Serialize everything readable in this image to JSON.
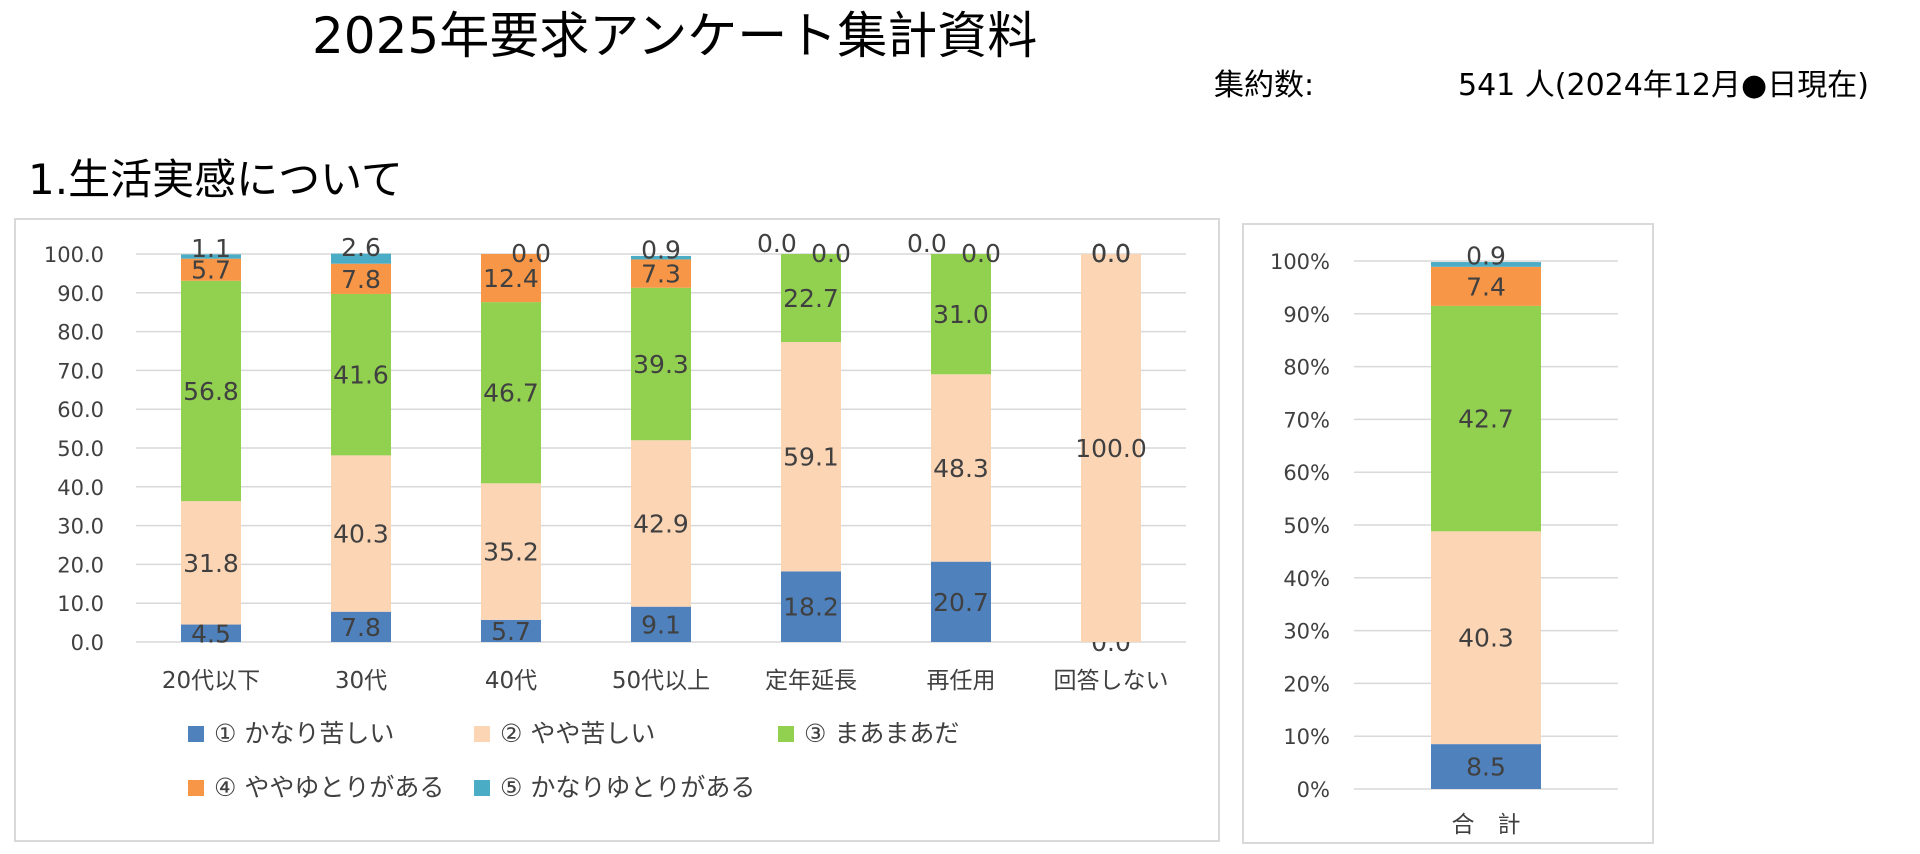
{
  "header": {
    "title": "2025年要求アンケート集計資料",
    "count_label": "集約数:",
    "count_value": "541 人(2024年12月●日現在)"
  },
  "section": {
    "title": "1.生活実感について"
  },
  "colors": {
    "s1": "#4f81bd",
    "s2": "#fcd5b5",
    "s3": "#92d050",
    "s4": "#f79646",
    "s5": "#4bacc6",
    "grid": "#d9d9d9",
    "text": "#404040"
  },
  "chart_data": [
    {
      "type": "bar",
      "stacked": true,
      "title": "",
      "xlabel": "",
      "ylabel": "",
      "ylim": [
        0,
        100
      ],
      "yticks": [
        "0.0",
        "10.0",
        "20.0",
        "30.0",
        "40.0",
        "50.0",
        "60.0",
        "70.0",
        "80.0",
        "90.0",
        "100.0"
      ],
      "grid": true,
      "legend_position": "bottom",
      "categories": [
        "20代以下",
        "30代",
        "40代",
        "50代以上",
        "定年延長",
        "再任用",
        "回答しない"
      ],
      "series": [
        {
          "name": "① かなり苦しい",
          "values": [
            4.5,
            7.8,
            5.7,
            9.1,
            18.2,
            20.7,
            0.0
          ],
          "labels": [
            "4.5",
            "7.8",
            "5.7",
            "9.1",
            "18.2",
            "20.7",
            "0.0"
          ]
        },
        {
          "name": "② やや苦しい",
          "values": [
            31.8,
            40.3,
            35.2,
            42.9,
            59.1,
            48.3,
            100.0
          ],
          "labels": [
            "31.8",
            "40.3",
            "35.2",
            "42.9",
            "59.1",
            "48.3",
            "100.0"
          ]
        },
        {
          "name": "③ まあまあだ",
          "values": [
            56.8,
            41.6,
            46.7,
            39.3,
            22.7,
            31.0,
            0.0
          ],
          "labels": [
            "56.8",
            "41.6",
            "46.7",
            "39.3",
            "22.7",
            "31.0",
            "0.0"
          ]
        },
        {
          "name": "④ ややゆとりがある",
          "values": [
            5.7,
            7.8,
            12.4,
            7.3,
            0.0,
            0.0,
            0.0
          ],
          "labels": [
            "5.7",
            "7.8",
            "12.4",
            "7.3",
            "0.0",
            "0.0",
            "0.0"
          ]
        },
        {
          "name": "⑤ かなりゆとりがある",
          "values": [
            1.1,
            2.6,
            0.0,
            0.9,
            0.0,
            0.0,
            0.0
          ],
          "labels": [
            "1.1",
            "2.6",
            "0.0",
            "0.9",
            "0.0",
            "0.0",
            "0.0"
          ]
        }
      ]
    },
    {
      "type": "bar",
      "stacked": true,
      "title": "",
      "xlabel": "",
      "ylabel": "",
      "ylim": [
        0,
        100
      ],
      "yticks": [
        "0%",
        "10%",
        "20%",
        "30%",
        "40%",
        "50%",
        "60%",
        "70%",
        "80%",
        "90%",
        "100%"
      ],
      "grid": true,
      "categories": [
        "合　計"
      ],
      "series": [
        {
          "name": "① かなり苦しい",
          "values": [
            8.5
          ],
          "labels": [
            "8.5"
          ]
        },
        {
          "name": "② やや苦しい",
          "values": [
            40.3
          ],
          "labels": [
            "40.3"
          ]
        },
        {
          "name": "③ まあまあだ",
          "values": [
            42.7
          ],
          "labels": [
            "42.7"
          ]
        },
        {
          "name": "④ ややゆとりがある",
          "values": [
            7.4
          ],
          "labels": [
            "7.4"
          ]
        },
        {
          "name": "⑤ かなりゆとりがある",
          "values": [
            0.9
          ],
          "labels": [
            "0.9"
          ]
        }
      ]
    }
  ]
}
